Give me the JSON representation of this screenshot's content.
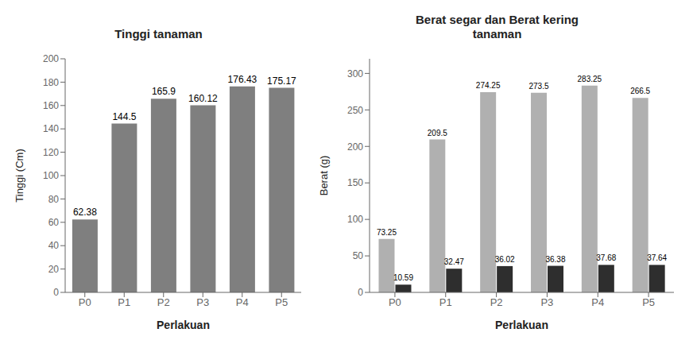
{
  "chart_data": [
    {
      "type": "bar",
      "title": "Tinggi tanaman",
      "categories": [
        "P0",
        "P1",
        "P2",
        "P3",
        "P4",
        "P5"
      ],
      "values": [
        62.38,
        144.5,
        165.9,
        160.12,
        176.43,
        175.17
      ],
      "color": "#7f7f7f",
      "ylabel": "Tinggi (Cm)",
      "xlabel": "Perlakuan",
      "ylim": [
        0,
        200
      ],
      "yticks": [
        0,
        20,
        40,
        60,
        80,
        100,
        120,
        140,
        160,
        180,
        200
      ],
      "grid": false,
      "data_labels": true
    },
    {
      "type": "bar",
      "title": "Berat segar dan Berat kering\ntanaman",
      "categories": [
        "P0",
        "P1",
        "P2",
        "P3",
        "P4",
        "P5"
      ],
      "series": [
        {
          "color": "#b0b0b0",
          "values": [
            73.25,
            209.5,
            274.25,
            273.5,
            283.25,
            266.5
          ]
        },
        {
          "color": "#2e2e2e",
          "values": [
            10.59,
            32.47,
            36.02,
            36.38,
            37.68,
            37.64
          ]
        }
      ],
      "ylabel": "Berat (g)",
      "xlabel": "Perlakuan",
      "ylim": [
        0,
        320
      ],
      "yticks": [
        0,
        50,
        100,
        150,
        200,
        250,
        300
      ],
      "grid": false,
      "data_labels": true
    }
  ]
}
